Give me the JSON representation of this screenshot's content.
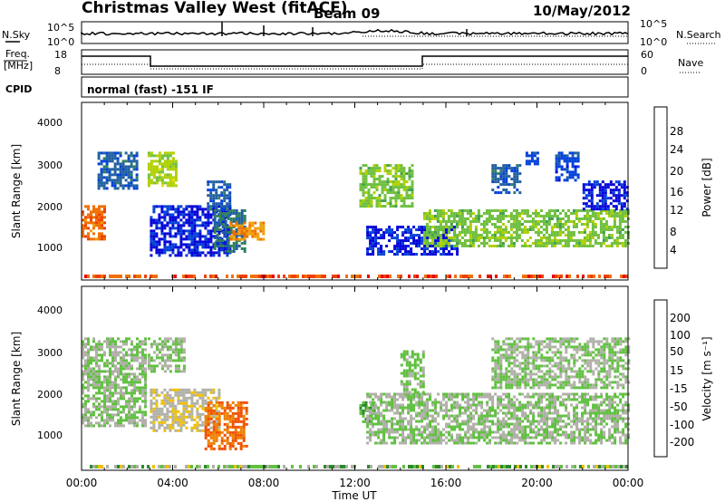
{
  "header": {
    "title": "Christmas Valley West (fitACF)",
    "beam": "Beam 09",
    "date": "10/May/2012"
  },
  "top_panels": {
    "nsky_label": "N.Sky",
    "nsky_ticks": [
      "10^5",
      "10^0"
    ],
    "nsearch_label": "N.Search",
    "nsearch_ticks": [
      "10^5",
      "10^0"
    ],
    "freq_label_line1": "Freq.",
    "freq_label_line2": "[MHz]",
    "freq_ticks": [
      "18",
      "8"
    ],
    "nave_label": "Nave",
    "nave_ticks": [
      "60",
      "0"
    ],
    "cpid_label": "CPID",
    "cpid_text": "normal (fast) -151 IF"
  },
  "axes": {
    "ylabel": "Slant Range [km]",
    "yticks": [
      "4000",
      "3000",
      "2000",
      "1000"
    ],
    "xticks": [
      "00:00",
      "04:00",
      "08:00",
      "12:00",
      "16:00",
      "20:00",
      "00:00"
    ],
    "xlabel": "Time UT"
  },
  "colorbars": {
    "power": {
      "label": "Power [dB]",
      "ticks": [
        "28",
        "24",
        "20",
        "16",
        "12",
        "8",
        "4"
      ],
      "colors": [
        "#0000d8",
        "#0040d8",
        "#2060a0",
        "#308060",
        "#40a050",
        "#70c040",
        "#b0d000",
        "#e8e000",
        "#f0a000",
        "#f07000",
        "#f04000",
        "#e80000"
      ]
    },
    "velocity": {
      "label": "Velocity [m s⁻¹]",
      "ticks": [
        "200",
        "100",
        "50",
        "15",
        "-15",
        "-50",
        "-100",
        "-200"
      ],
      "colors": [
        "#1010c0",
        "#2040a0",
        "#206a50",
        "#2a8a2a",
        "#60c040",
        "#b0b0a8",
        "#f0c000",
        "#f08000",
        "#f05000",
        "#e00000"
      ]
    }
  },
  "chart_data": [
    {
      "type": "heatmap",
      "title": "Christmas Valley West (fitACF)",
      "subtitle": "Beam 09",
      "xlabel": "Time UT",
      "ylabel": "Slant Range [km]",
      "xlim": [
        0,
        24
      ],
      "ylim": [
        180,
        4500
      ],
      "colorbar_label": "Power [dB]",
      "colorbar_range": [
        0,
        30
      ],
      "regions": [
        {
          "t": [
            0.0,
            1.0
          ],
          "r": [
            1200,
            2000
          ],
          "value": 6
        },
        {
          "t": [
            0.7,
            2.4
          ],
          "r": [
            2400,
            3300
          ],
          "value": 24
        },
        {
          "t": [
            2.9,
            4.2
          ],
          "r": [
            2500,
            3300
          ],
          "value": 14
        },
        {
          "t": [
            3.0,
            6.5
          ],
          "r": [
            800,
            2000
          ],
          "value": 28
        },
        {
          "t": [
            5.5,
            6.5
          ],
          "r": [
            1900,
            2600
          ],
          "value": 24
        },
        {
          "t": [
            5.8,
            7.2
          ],
          "r": [
            900,
            1900
          ],
          "value": 22
        },
        {
          "t": [
            6.5,
            8.0
          ],
          "r": [
            1200,
            1600
          ],
          "value": 8
        },
        {
          "t": [
            12.2,
            14.5
          ],
          "r": [
            2000,
            3000
          ],
          "value": 16
        },
        {
          "t": [
            12.5,
            16.5
          ],
          "r": [
            800,
            1500
          ],
          "value": 28
        },
        {
          "t": [
            15.0,
            24.0
          ],
          "r": [
            1000,
            1900
          ],
          "value": 16
        },
        {
          "t": [
            18.0,
            19.2
          ],
          "r": [
            2300,
            3000
          ],
          "value": 24
        },
        {
          "t": [
            19.5,
            20.0
          ],
          "r": [
            3000,
            3300
          ],
          "value": 26
        },
        {
          "t": [
            20.8,
            21.8
          ],
          "r": [
            2600,
            3300
          ],
          "value": 26
        },
        {
          "t": [
            22.0,
            24.0
          ],
          "r": [
            1900,
            2600
          ],
          "value": 28
        }
      ]
    },
    {
      "type": "heatmap",
      "title": "Christmas Valley West (fitACF)",
      "subtitle": "Beam 09",
      "xlabel": "Time UT",
      "ylabel": "Slant Range [km]",
      "xlim": [
        0,
        24
      ],
      "ylim": [
        180,
        4500
      ],
      "colorbar_label": "Velocity [m s⁻¹]",
      "colorbar_range": [
        -200,
        200
      ],
      "regions": [
        {
          "t": [
            0.0,
            2.8
          ],
          "r": [
            1200,
            3300
          ],
          "value": 0
        },
        {
          "t": [
            2.9,
            4.5
          ],
          "r": [
            2500,
            3300
          ],
          "value": 0
        },
        {
          "t": [
            3.0,
            6.0
          ],
          "r": [
            1100,
            2100
          ],
          "value": -30
        },
        {
          "t": [
            5.4,
            7.2
          ],
          "r": [
            700,
            1800
          ],
          "value": -120
        },
        {
          "t": [
            12.2,
            12.8
          ],
          "r": [
            1300,
            1800
          ],
          "value": 40
        },
        {
          "t": [
            12.5,
            24.0
          ],
          "r": [
            800,
            2000
          ],
          "value": 0
        },
        {
          "t": [
            14.0,
            15.0
          ],
          "r": [
            2000,
            3000
          ],
          "value": 10
        },
        {
          "t": [
            18.0,
            24.0
          ],
          "r": [
            2100,
            3300
          ],
          "value": 0
        }
      ]
    }
  ]
}
